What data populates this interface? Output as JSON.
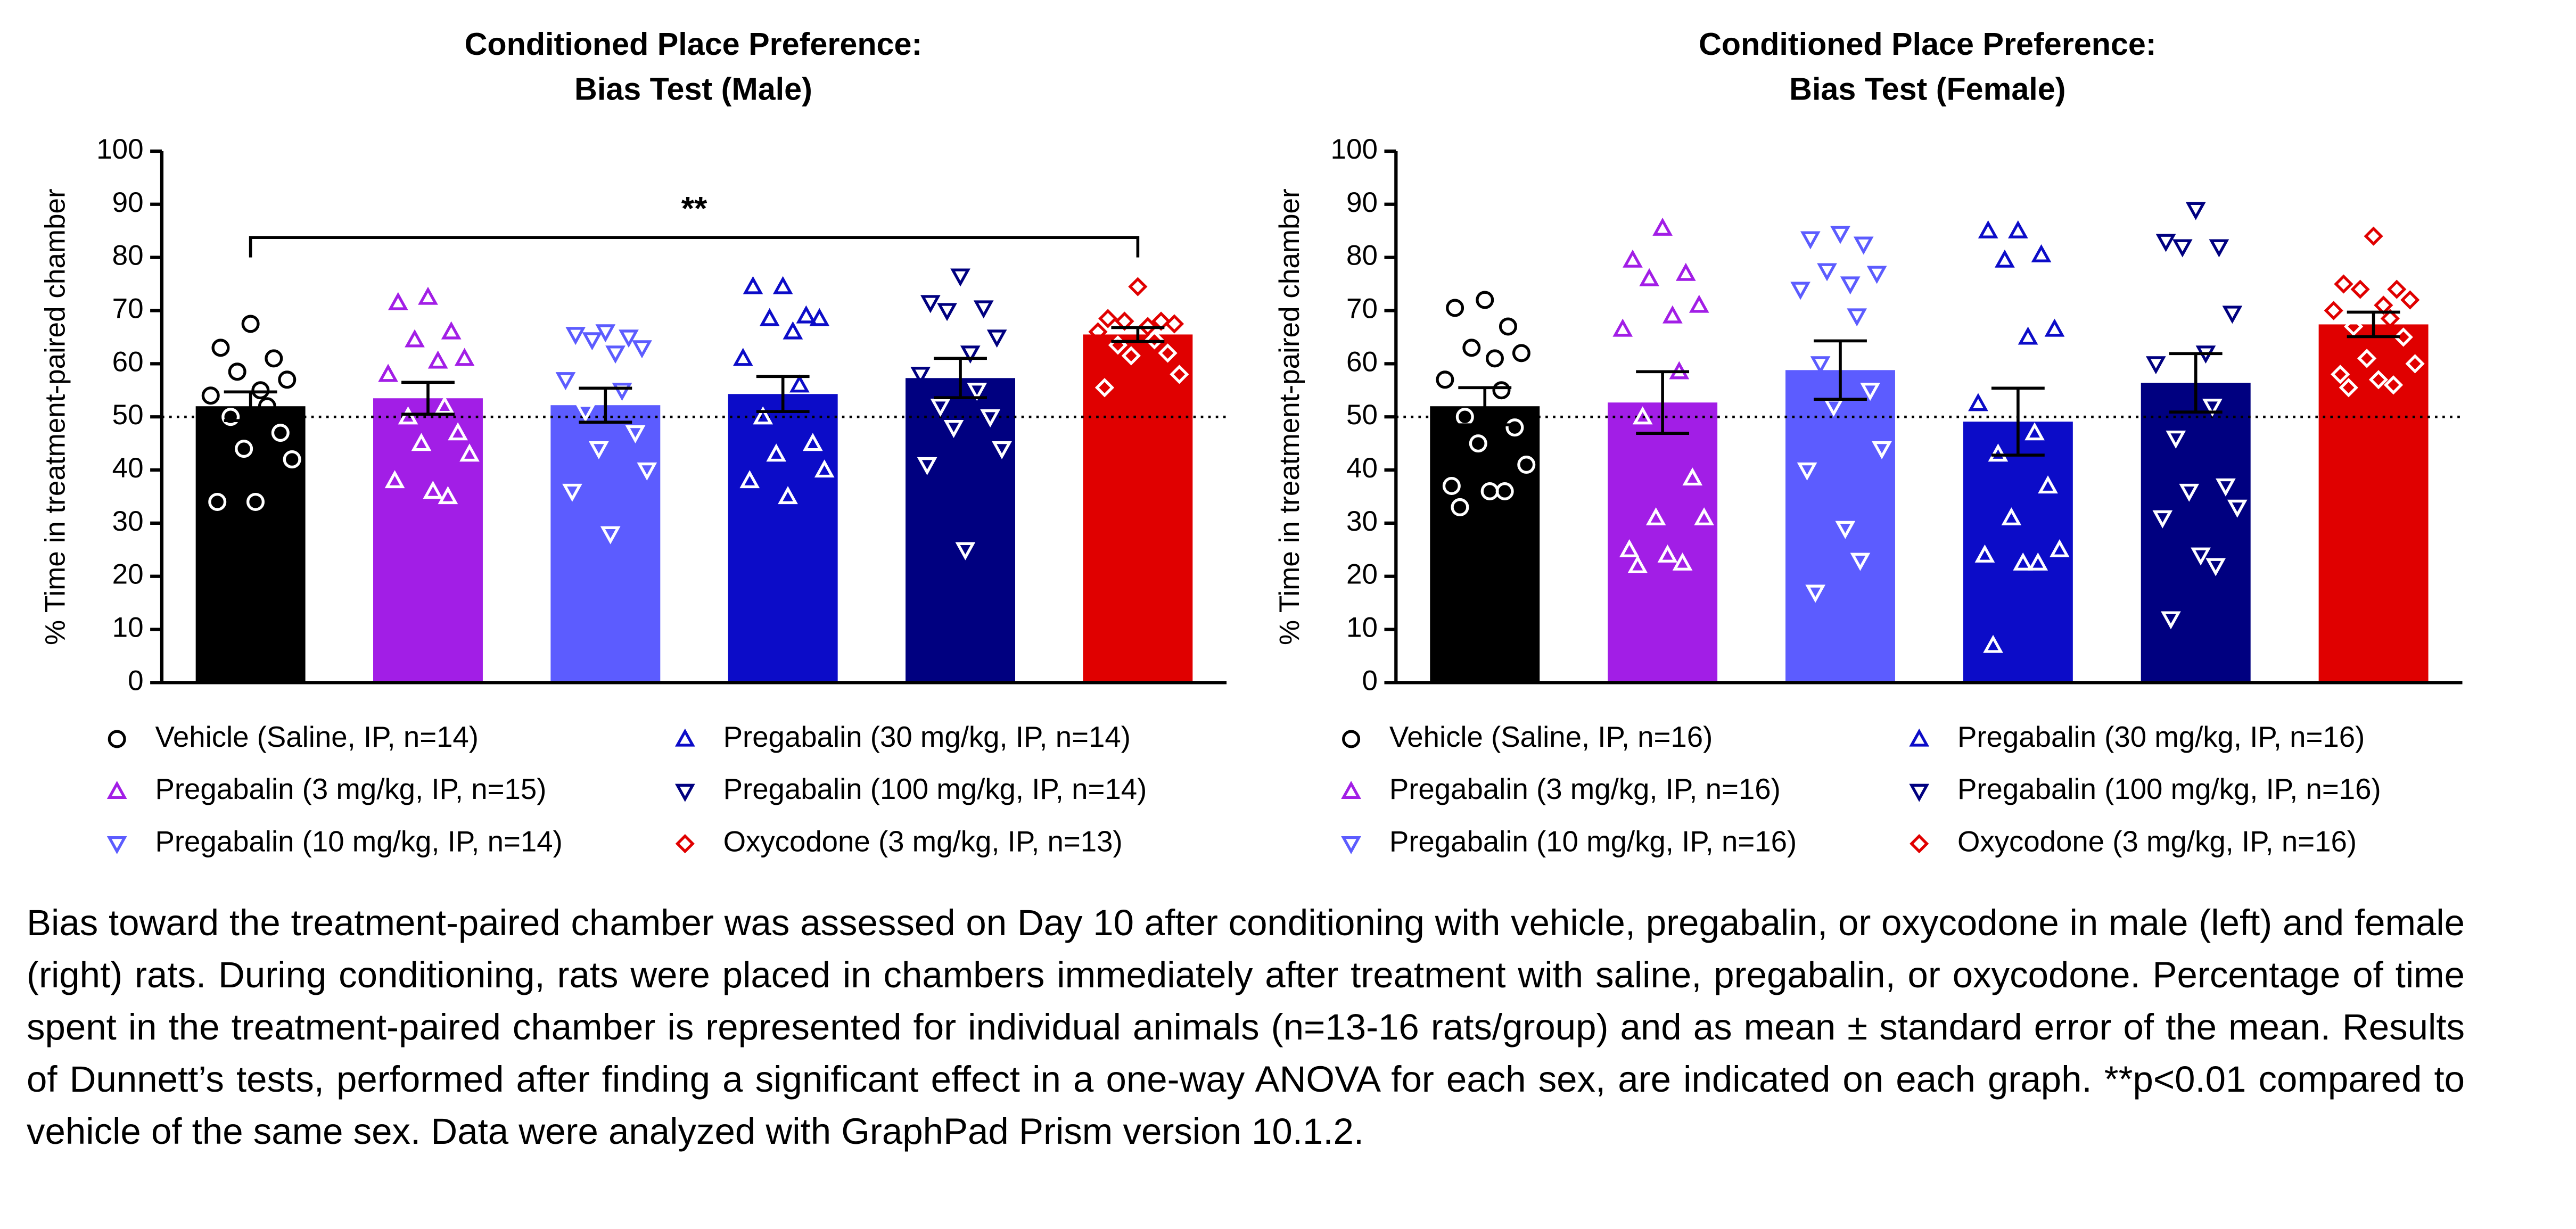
{
  "chart_data": [
    {
      "type": "bar",
      "title": "Conditioned Place Preference:",
      "subtitle": "Bias Test (Male)",
      "ylabel": "% Time in treatment-paired chamber",
      "categories": [
        "Vehicle (Saline, IP, n=14)",
        "Pregabalin (3 mg/kg, IP, n=15)",
        "Pregabalin (10 mg/kg, IP, n=14)",
        "Pregabalin (30 mg/kg, IP, n=14)",
        "Pregabalin (100 mg/kg, IP, n=14)",
        "Oxycodone (3 mg/kg, IP, n=13)"
      ],
      "values": [
        52,
        53.5,
        52.2,
        54.3,
        57.3,
        65.5
      ],
      "errors": [
        2.7,
        3,
        3.2,
        3.3,
        3.7,
        1.3
      ],
      "colors": [
        "#000000",
        "#a21ee6",
        "#5c5cff",
        "#0c0cc8",
        "#000080",
        "#e00000"
      ],
      "markers": [
        "circle",
        "triangle-up",
        "triangle-down",
        "triangle-up",
        "triangle-down",
        "diamond"
      ],
      "points": [
        [
          67.5,
          63,
          61,
          58.5,
          57,
          55,
          54,
          52,
          50,
          47,
          44,
          42,
          34,
          34
        ],
        [
          72.5,
          71.5,
          66,
          64.5,
          61,
          60.5,
          58,
          52,
          50,
          47,
          45,
          43,
          38,
          36,
          35
        ],
        [
          66,
          65.5,
          65,
          64.5,
          63,
          62,
          57,
          55,
          51,
          47,
          44,
          40,
          36,
          28
        ],
        [
          74.5,
          74.5,
          69,
          68.5,
          68.5,
          66,
          61,
          56,
          50,
          45,
          43,
          40,
          38,
          35
        ],
        [
          76.5,
          71.5,
          70.5,
          70,
          65,
          62,
          58,
          55,
          52,
          50,
          48,
          44,
          41,
          25
        ],
        [
          74.5,
          68.5,
          68,
          68,
          67.5,
          67,
          66,
          64.5,
          63.5,
          62,
          61.5,
          58,
          55.5
        ]
      ],
      "reference_line": 50,
      "annotation": "**",
      "ylim": [
        0,
        100
      ],
      "yticks": [
        0,
        10,
        20,
        30,
        40,
        50,
        60,
        70,
        80,
        90,
        100
      ]
    },
    {
      "type": "bar",
      "title": "Conditioned Place Preference:",
      "subtitle": "Bias Test (Female)",
      "ylabel": "% Time in treatment-paired chamber",
      "categories": [
        "Vehicle (Saline, IP, n=16)",
        "Pregabalin (3 mg/kg, IP, n=16)",
        "Pregabalin (10 mg/kg, IP, n=16)",
        "Pregabalin (30 mg/kg, IP, n=16)",
        "Pregabalin (100 mg/kg, IP, n=16)",
        "Oxycodone (3 mg/kg, IP, n=16)"
      ],
      "values": [
        52,
        52.7,
        58.8,
        49.1,
        56.4,
        67.4
      ],
      "errors": [
        3.5,
        5.8,
        5.5,
        6.3,
        5.5,
        2.3
      ],
      "colors": [
        "#000000",
        "#a21ee6",
        "#5c5cff",
        "#0c0cc8",
        "#000080",
        "#e00000"
      ],
      "markers": [
        "circle",
        "triangle-up",
        "triangle-down",
        "triangle-up",
        "triangle-down",
        "diamond"
      ],
      "points": [
        [
          72,
          70.5,
          67,
          63,
          62,
          61,
          57,
          55,
          50,
          48,
          45,
          41,
          37,
          36,
          36,
          33
        ],
        [
          85.5,
          79.5,
          77,
          76,
          71,
          69,
          66.5,
          58.5,
          50,
          38.5,
          31,
          31,
          25,
          24,
          22.5,
          22
        ],
        [
          84.5,
          83.5,
          82.5,
          77.5,
          77,
          75,
          74,
          69,
          60,
          55,
          52,
          44,
          40,
          29,
          23,
          17
        ],
        [
          85,
          85,
          80.5,
          79.5,
          66.5,
          65,
          52.5,
          47,
          43,
          37,
          31,
          25,
          24,
          22.5,
          22.5,
          7
        ],
        [
          89,
          83,
          82,
          82,
          69.5,
          62,
          60,
          52,
          46,
          37,
          36,
          33,
          31,
          24,
          22,
          12
        ],
        [
          84,
          75,
          74,
          74,
          72,
          71,
          70,
          68.5,
          67,
          65,
          61,
          60,
          58,
          57,
          56,
          55.5
        ]
      ],
      "reference_line": 50,
      "ylim": [
        0,
        100
      ],
      "yticks": [
        0,
        10,
        20,
        30,
        40,
        50,
        60,
        70,
        80,
        90,
        100
      ]
    }
  ],
  "caption": "Bias toward the treatment-paired chamber was assessed on Day 10 after conditioning with vehicle, pregabalin, or oxycodone in male (left) and female (right) rats. During conditioning, rats were placed in chambers immediately after treatment with saline, pregabalin, or oxycodone. Percentage of time spent in the treatment-paired chamber is represented for individual animals (n=13-16 rats/group) and as mean ± standard error of the mean. Results of Dunnett’s tests, performed after finding a significant effect in a one-way ANOVA for each sex, are indicated on each graph. **p<0.01 compared to vehicle of the same sex. Data were analyzed with GraphPad Prism version 10.1.2."
}
